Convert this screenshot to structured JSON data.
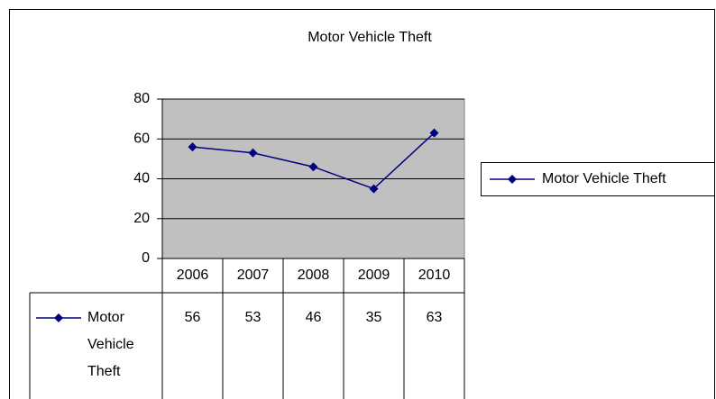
{
  "chart_data": {
    "type": "line",
    "title": "Motor Vehicle Theft",
    "categories": [
      "2006",
      "2007",
      "2008",
      "2009",
      "2010"
    ],
    "series": [
      {
        "name": "Motor Vehicle Theft",
        "color": "#000080",
        "values": [
          56,
          53,
          46,
          35,
          63
        ]
      }
    ],
    "ylim": [
      0,
      80
    ],
    "yticks": [
      0,
      20,
      40,
      60,
      80
    ],
    "grid": true,
    "legend": "right",
    "data_table": true
  }
}
